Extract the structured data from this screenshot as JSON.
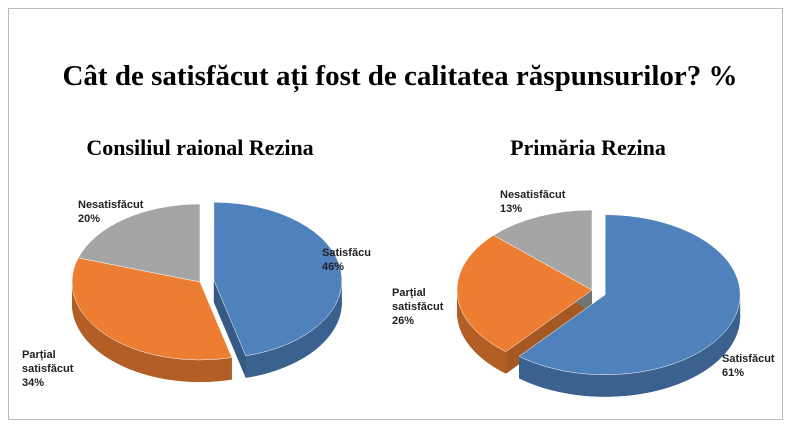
{
  "title": "Cât de satisfăcut ați fost de calitatea răspunsurilor? %",
  "chart_data": [
    {
      "type": "pie",
      "title": "Consiliul raional Rezina",
      "categories": [
        "Satisfăcu",
        "Parțial satisfăcut",
        "Nesatisfăcut"
      ],
      "values": [
        46,
        34,
        20
      ],
      "value_labels": [
        "46%",
        "34%",
        "20%"
      ],
      "colors": [
        "#4f81bd",
        "#ed7d31",
        "#a5a5a5"
      ]
    },
    {
      "type": "pie",
      "title": "Primăria Rezina",
      "categories": [
        "Satisfăcut",
        "Parțial satisfăcut",
        "Nesatisfăcut"
      ],
      "values": [
        61,
        26,
        13
      ],
      "value_labels": [
        "61%",
        "26%",
        "13%"
      ],
      "colors": [
        "#4f81bd",
        "#ed7d31",
        "#a5a5a5"
      ]
    }
  ]
}
